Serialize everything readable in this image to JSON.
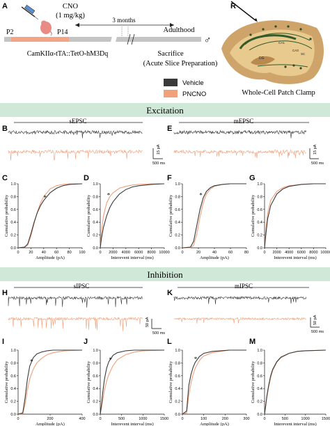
{
  "colors": {
    "vehicle": "#3a3a3a",
    "pncno": "#f0a07a",
    "banner": "#cfe8d8",
    "timeline_bar": "#c4c4c4",
    "timeline_pn": "#f3a487"
  },
  "panel_letters": [
    "A",
    "B",
    "C",
    "D",
    "E",
    "F",
    "G",
    "H",
    "I",
    "J",
    "K",
    "L",
    "M"
  ],
  "panel_a": {
    "drug": "CNO",
    "dose": "(1 mg/kg)",
    "p2": "P2",
    "p14": "P14",
    "interval": "3 months",
    "adulthood": "Adulthood",
    "male_symbol": "♂",
    "genotype": "CamKIIα-tTA::TetO-hM3Dq",
    "sacrifice": "Sacrifice",
    "prep": "(Acute Slice Preparation)"
  },
  "panel_r": {
    "letter": "R",
    "caption": "Whole-Cell Patch Clamp",
    "labels": [
      "CA1",
      "CA3",
      "DG",
      "SC"
    ]
  },
  "legend": {
    "vehicle": "Vehicle",
    "pncno": "PNCNO"
  },
  "excitation": {
    "title": "Excitation",
    "left_label": "sEPSC",
    "right_label": "mEPSC",
    "scale_y": "15 pA",
    "scale_x": "500 ms"
  },
  "inhibition": {
    "title": "Inhibition",
    "left_label": "sIPSC",
    "right_label": "mIPSC",
    "scale_y": "50 pA",
    "scale_x": "500 ms"
  },
  "ylabel": "Cumulative probability",
  "yticks": [
    "0.0",
    "0.2",
    "0.4",
    "0.6",
    "0.8",
    "1.0"
  ],
  "star": "*",
  "chart_data": [
    {
      "panel": "C",
      "type": "line",
      "xlabel": "Amplitude (pA)",
      "xlim": [
        0,
        100
      ],
      "xticks": [
        "0",
        "20",
        "40",
        "60",
        "80",
        "100"
      ],
      "ylim": [
        0,
        1
      ],
      "series": [
        {
          "name": "Vehicle",
          "x": [
            0,
            10,
            15,
            20,
            25,
            30,
            35,
            40,
            50,
            60,
            70,
            80,
            100
          ],
          "y": [
            0,
            0.01,
            0.06,
            0.22,
            0.4,
            0.55,
            0.66,
            0.74,
            0.86,
            0.93,
            0.97,
            0.99,
            1.0
          ]
        },
        {
          "name": "PNCNO",
          "x": [
            0,
            10,
            15,
            20,
            25,
            30,
            35,
            40,
            50,
            60,
            70,
            80,
            100
          ],
          "y": [
            0,
            0.01,
            0.04,
            0.18,
            0.38,
            0.56,
            0.7,
            0.8,
            0.92,
            0.97,
            0.99,
            1.0,
            1.0
          ]
        }
      ],
      "star_x": 42,
      "star_y": 0.78
    },
    {
      "panel": "D",
      "type": "line",
      "xlabel": "Interevent interval (ms)",
      "xlim": [
        0,
        10000
      ],
      "xticks": [
        "0",
        "2000",
        "4000",
        "6000",
        "8000",
        "10000"
      ],
      "ylim": [
        0,
        1
      ],
      "series": [
        {
          "name": "Vehicle",
          "x": [
            0,
            200,
            500,
            1000,
            1500,
            2000,
            3000,
            4000,
            5000,
            6000,
            8000,
            10000
          ],
          "y": [
            0,
            0.15,
            0.32,
            0.5,
            0.63,
            0.72,
            0.84,
            0.91,
            0.95,
            0.97,
            0.99,
            1.0
          ]
        },
        {
          "name": "PNCNO",
          "x": [
            0,
            200,
            500,
            1000,
            1500,
            2000,
            3000,
            4000,
            5000,
            6000,
            8000,
            10000
          ],
          "y": [
            0,
            0.25,
            0.5,
            0.7,
            0.8,
            0.86,
            0.93,
            0.96,
            0.98,
            0.99,
            1.0,
            1.0
          ]
        }
      ],
      "star_x": 1300,
      "star_y": 0.82
    },
    {
      "panel": "F",
      "type": "line",
      "xlabel": "Amplitude (pA)",
      "xlim": [
        0,
        80
      ],
      "xticks": [
        "0",
        "20",
        "40",
        "60",
        "80"
      ],
      "ylim": [
        0,
        1
      ],
      "series": [
        {
          "name": "Vehicle",
          "x": [
            0,
            10,
            14,
            18,
            22,
            26,
            30,
            35,
            40,
            50,
            60,
            80
          ],
          "y": [
            0,
            0.01,
            0.1,
            0.35,
            0.6,
            0.78,
            0.88,
            0.94,
            0.97,
            0.99,
            1.0,
            1.0
          ]
        },
        {
          "name": "PNCNO",
          "x": [
            0,
            10,
            14,
            18,
            22,
            26,
            30,
            35,
            40,
            50,
            60,
            80
          ],
          "y": [
            0,
            0.0,
            0.04,
            0.22,
            0.48,
            0.7,
            0.84,
            0.92,
            0.96,
            0.99,
            1.0,
            1.0
          ]
        }
      ],
      "star_x": 23,
      "star_y": 0.82
    },
    {
      "panel": "G",
      "type": "line",
      "xlabel": "Interevent interval (ms)",
      "xlim": [
        0,
        10000
      ],
      "xticks": [
        "0",
        "2000",
        "4000",
        "6000",
        "8000",
        "10000"
      ],
      "ylim": [
        0,
        1
      ],
      "series": [
        {
          "name": "Vehicle",
          "x": [
            0,
            200,
            500,
            1000,
            2000,
            3000,
            4000,
            6000,
            8000,
            10000
          ],
          "y": [
            0,
            0.2,
            0.45,
            0.66,
            0.84,
            0.92,
            0.96,
            0.99,
            1.0,
            1.0
          ]
        },
        {
          "name": "PNCNO",
          "x": [
            0,
            200,
            500,
            1000,
            2000,
            3000,
            4000,
            6000,
            8000,
            10000
          ],
          "y": [
            0,
            0.28,
            0.54,
            0.74,
            0.88,
            0.94,
            0.97,
            0.99,
            1.0,
            1.0
          ]
        }
      ]
    },
    {
      "panel": "I",
      "type": "line",
      "xlabel": "Amplitude (pA)",
      "xlim": [
        0,
        550
      ],
      "xticks": [
        "0",
        "200",
        "400"
      ],
      "ylim": [
        0,
        1
      ],
      "series": [
        {
          "name": "Vehicle",
          "x": [
            0,
            40,
            60,
            80,
            100,
            130,
            160,
            200,
            250,
            300,
            400,
            550
          ],
          "y": [
            0,
            0.02,
            0.25,
            0.55,
            0.75,
            0.88,
            0.94,
            0.97,
            0.99,
            1.0,
            1.0,
            1.0
          ]
        },
        {
          "name": "PNCNO",
          "x": [
            0,
            40,
            60,
            80,
            100,
            130,
            160,
            200,
            250,
            300,
            400,
            550
          ],
          "y": [
            0,
            0.01,
            0.15,
            0.38,
            0.55,
            0.7,
            0.8,
            0.87,
            0.93,
            0.96,
            0.99,
            1.0
          ]
        }
      ],
      "star_x": 115,
      "star_y": 0.82
    },
    {
      "panel": "J",
      "type": "line",
      "xlabel": "Interevent interval (ms)",
      "xlim": [
        0,
        1500
      ],
      "xticks": [
        "0",
        "500",
        "1000",
        "1500"
      ],
      "ylim": [
        0,
        1
      ],
      "series": [
        {
          "name": "Vehicle",
          "x": [
            0,
            30,
            60,
            100,
            150,
            200,
            300,
            400,
            600,
            800,
            1000,
            1500
          ],
          "y": [
            0,
            0.15,
            0.35,
            0.55,
            0.72,
            0.82,
            0.92,
            0.96,
            0.99,
            1.0,
            1.0,
            1.0
          ]
        },
        {
          "name": "PNCNO",
          "x": [
            0,
            30,
            60,
            100,
            150,
            200,
            300,
            400,
            600,
            800,
            1000,
            1500
          ],
          "y": [
            0,
            0.1,
            0.22,
            0.38,
            0.52,
            0.62,
            0.76,
            0.85,
            0.93,
            0.97,
            0.99,
            1.0
          ]
        }
      ],
      "star_x": 240,
      "star_y": 0.85
    },
    {
      "panel": "L",
      "type": "line",
      "xlabel": "Amplitude (pA)",
      "xlim": [
        0,
        300
      ],
      "xticks": [
        "0",
        "100",
        "200",
        "300"
      ],
      "ylim": [
        0,
        1
      ],
      "series": [
        {
          "name": "Vehicle",
          "x": [
            0,
            20,
            30,
            40,
            50,
            60,
            80,
            100,
            140,
            180,
            220,
            300
          ],
          "y": [
            0,
            0.05,
            0.45,
            0.62,
            0.73,
            0.81,
            0.9,
            0.95,
            0.98,
            0.99,
            1.0,
            1.0
          ]
        },
        {
          "name": "PNCNO",
          "x": [
            0,
            20,
            30,
            40,
            50,
            60,
            80,
            100,
            140,
            180,
            220,
            300
          ],
          "y": [
            0,
            0.02,
            0.3,
            0.48,
            0.62,
            0.72,
            0.84,
            0.91,
            0.96,
            0.98,
            1.0,
            1.0
          ]
        }
      ],
      "star_x": 62,
      "star_y": 0.86
    },
    {
      "panel": "M",
      "type": "line",
      "xlabel": "Interevent interval (ms)",
      "xlim": [
        0,
        1500
      ],
      "xticks": [
        "0",
        "500",
        "1000",
        "1500"
      ],
      "ylim": [
        0,
        1
      ],
      "series": [
        {
          "name": "Vehicle",
          "x": [
            0,
            30,
            60,
            100,
            150,
            200,
            300,
            400,
            600,
            800,
            1000,
            1500
          ],
          "y": [
            0,
            0.15,
            0.3,
            0.45,
            0.6,
            0.7,
            0.82,
            0.89,
            0.95,
            0.98,
            0.99,
            1.0
          ]
        },
        {
          "name": "PNCNO",
          "x": [
            0,
            30,
            60,
            100,
            150,
            200,
            300,
            400,
            600,
            800,
            1000,
            1500
          ],
          "y": [
            0,
            0.13,
            0.27,
            0.42,
            0.57,
            0.68,
            0.81,
            0.88,
            0.95,
            0.98,
            0.99,
            1.0
          ]
        }
      ]
    }
  ]
}
